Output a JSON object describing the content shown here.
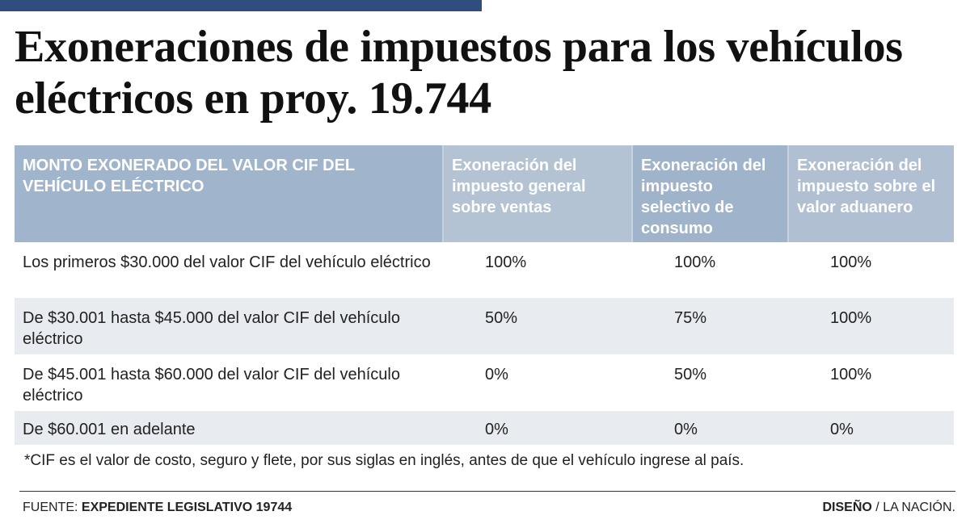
{
  "title_line1": "Exoneraciones de impuestos para los vehículos",
  "title_line2": "eléctricos en proy. 19.744",
  "colors": {
    "top_bar": "#2f4e7e",
    "header_a": "#a0b4cb",
    "header_b": "#b3c3d4",
    "row_alt": "#e8ebef"
  },
  "table": {
    "headers": [
      "MONTO EXONERADO DEL VALOR CIF DEL VEHÍCULO ELÉCTRICO",
      "Exoneración del impuesto general sobre ventas",
      "Exoneración del impuesto selectivo de consumo",
      "Exoneración del impuesto sobre el valor aduanero"
    ],
    "rows": [
      [
        "Los primeros $30.000 del valor CIF del vehículo eléctrico",
        "100%",
        "100%",
        "100%"
      ],
      [
        "De $30.001 hasta $45.000 del valor CIF del vehículo eléctrico",
        "50%",
        "75%",
        "100%"
      ],
      [
        "De $45.001 hasta $60.000 del valor CIF del vehículo eléctrico",
        "0%",
        "50%",
        "100%"
      ],
      [
        "De $60.001 en adelante",
        "0%",
        "0%",
        "0%"
      ]
    ]
  },
  "footnote": "*CIF es el valor de costo, seguro y flete, por sus siglas en inglés, antes de que el vehículo ingrese al país.",
  "source": {
    "label": "FUENTE:",
    "value": "EXPEDIENTE LEGISLATIVO 19744"
  },
  "credit": {
    "label": "DISEÑO",
    "value": "/ LA NACIÓN."
  }
}
